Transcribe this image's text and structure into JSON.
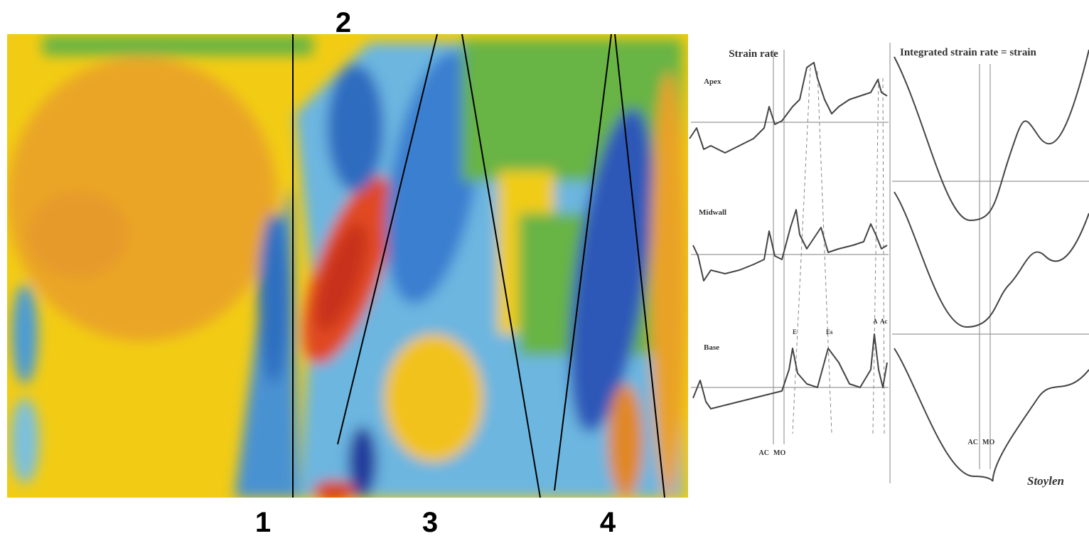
{
  "markers": [
    "1",
    "2",
    "3",
    "4"
  ],
  "strain_rate": {
    "title": "Strain rate",
    "rows": [
      "Apex",
      "Midwall",
      "Base"
    ],
    "events": [
      "AC",
      "MO"
    ],
    "peaks": [
      "E",
      "Es",
      "A",
      "Ac"
    ]
  },
  "strain": {
    "title": "Integrated strain rate = strain",
    "events": [
      "AC",
      "MO"
    ]
  },
  "credit": "Stoylen"
}
